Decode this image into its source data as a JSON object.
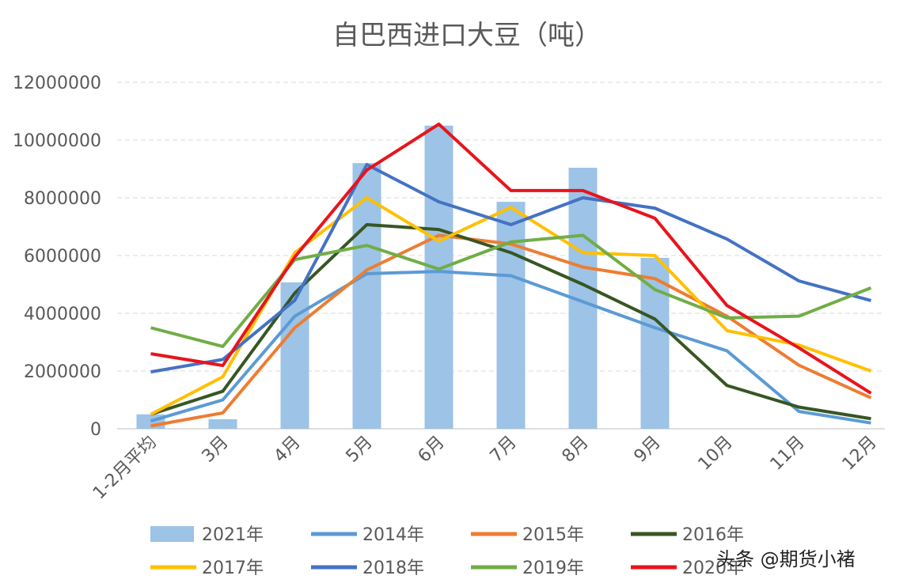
{
  "chart_data": {
    "type": "bar+line",
    "title": "自巴西进口大豆（吨）",
    "xlabel": "",
    "ylabel": "",
    "ylim": [
      0,
      12000000
    ],
    "yticks": [
      "0",
      "2000000",
      "4000000",
      "6000000",
      "8000000",
      "10000000",
      "12000000"
    ],
    "grid": true,
    "legend_position": "bottom",
    "categories": [
      "1-2月平均",
      "3月",
      "4月",
      "5月",
      "6月",
      "7月",
      "8月",
      "9月",
      "10月",
      "11月",
      "12月"
    ],
    "bar_series": {
      "name": "2021年",
      "color": "#9dc3e6",
      "values": [
        500000,
        330000,
        5070000,
        9200000,
        10500000,
        7860000,
        9040000,
        5920000,
        null,
        null,
        null
      ]
    },
    "series": [
      {
        "name": "2014年",
        "color": "#5b9bd5",
        "values": [
          270000,
          1000000,
          3900000,
          5370000,
          5450000,
          5300000,
          4400000,
          3500000,
          2700000,
          600000,
          200000
        ]
      },
      {
        "name": "2015年",
        "color": "#ed7d31",
        "values": [
          100000,
          550000,
          3500000,
          5500000,
          6700000,
          6400000,
          5600000,
          5200000,
          3900000,
          2200000,
          1070000
        ]
      },
      {
        "name": "2016年",
        "color": "#375623",
        "values": [
          500000,
          1300000,
          4700000,
          7070000,
          6900000,
          6100000,
          5000000,
          3800000,
          1500000,
          750000,
          350000
        ]
      },
      {
        "name": "2017年",
        "color": "#ffc000",
        "values": [
          500000,
          1800000,
          6100000,
          8000000,
          6500000,
          7670000,
          6100000,
          6000000,
          3400000,
          2900000,
          2000000
        ]
      },
      {
        "name": "2018年",
        "color": "#4472c4",
        "values": [
          1970000,
          2400000,
          4450000,
          9150000,
          7860000,
          7070000,
          8000000,
          7640000,
          6570000,
          5120000,
          4440000
        ]
      },
      {
        "name": "2019年",
        "color": "#70ad47",
        "values": [
          3500000,
          2850000,
          5860000,
          6350000,
          5530000,
          6470000,
          6700000,
          4820000,
          3840000,
          3900000,
          4880000
        ]
      },
      {
        "name": "2020年",
        "color": "#e8141c",
        "values": [
          2600000,
          2190000,
          5950000,
          8960000,
          10550000,
          8250000,
          8250000,
          7290000,
          4270000,
          2800000,
          1230000
        ]
      }
    ]
  },
  "watermark": "头条 @期货小褚"
}
